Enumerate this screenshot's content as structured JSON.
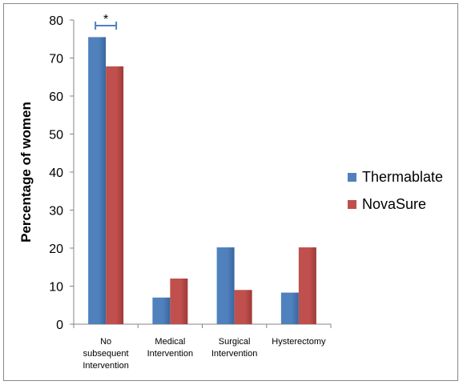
{
  "chart_data": {
    "type": "bar",
    "title": "",
    "xlabel": "",
    "ylabel": "Percentage of women",
    "ylim": [
      0,
      80
    ],
    "yticks": [
      0,
      10,
      20,
      30,
      40,
      50,
      60,
      70,
      80
    ],
    "categories": [
      [
        "No",
        "subsequent",
        "Intervention"
      ],
      [
        "Medical",
        "Intervention"
      ],
      [
        "Surgical",
        "Intervention"
      ],
      [
        "Hysterectomy"
      ]
    ],
    "series": [
      {
        "name": "Thermablate",
        "color": "#4F81BD",
        "values": [
          75.5,
          7,
          20.2,
          8.3
        ]
      },
      {
        "name": "NovaSure",
        "color": "#C0504D",
        "values": [
          67.8,
          12,
          9,
          20.2
        ]
      }
    ],
    "legend_position": "right",
    "grid": false,
    "annotation": {
      "text": "*",
      "category_index": 0,
      "style": "bracket"
    }
  }
}
